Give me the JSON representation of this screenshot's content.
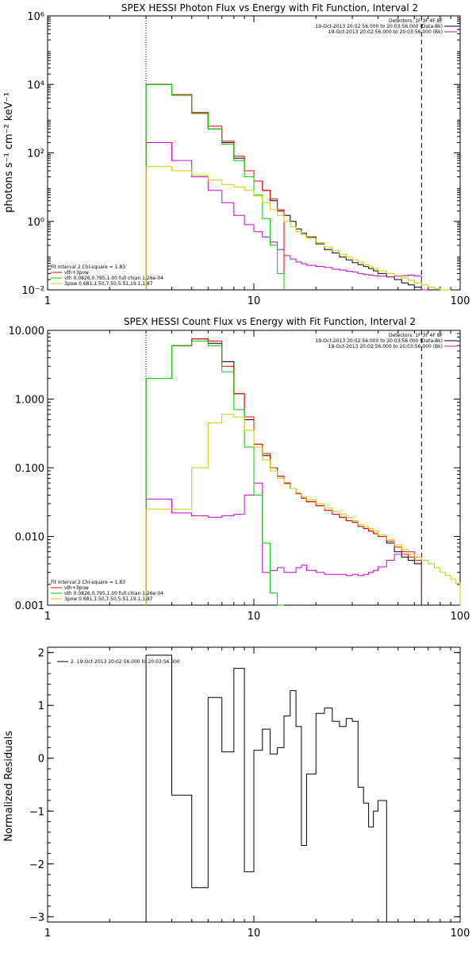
{
  "chart_data": [
    {
      "type": "step",
      "title": "SPEX HESSI Photon Flux vs Energy with Fit Function, Interval 2",
      "xlabel": "",
      "ylabel": "photons s⁻¹ cm⁻² keV⁻¹",
      "xscale": "log",
      "yscale": "log",
      "xlim": [
        1,
        100
      ],
      "ylim": [
        0.01,
        1000000
      ],
      "xticks": [
        "1",
        "10",
        "100"
      ],
      "yticks": [
        "10⁻²",
        "10⁰",
        "10²",
        "10⁴",
        "10⁶"
      ],
      "yticks_values": [
        0.01,
        1,
        100,
        10000,
        1000000
      ],
      "vlines": [
        {
          "x": 3.0,
          "style": "dotted"
        },
        {
          "x": 65,
          "style": "dashed"
        }
      ],
      "legend_top_right": [
        "Detectors: 1F 3F 4F 8F",
        "19-Oct-2013 20:02:56.000 to 20:03:56.000 (Data-Bk)",
        "19-Oct-2013 20:02:56.000 to 20:03:56.000 (Bk)"
      ],
      "legend_bottom_left": [
        "Fit Interval 2   Chi-square = 1.83",
        "vth+3pow",
        "vth 0.0826,0.795,1.00  full chian 1.26e-04",
        "3pow 0.681,1.50,7.50,5.51,19.1,1.87"
      ],
      "edges": [
        3,
        3.5,
        4,
        4.5,
        5,
        5.5,
        6,
        6.5,
        7,
        7.5,
        8,
        8.5,
        9,
        9.5,
        10,
        11,
        12,
        13,
        14,
        15,
        16,
        17,
        18,
        20,
        22,
        24,
        26,
        28,
        30,
        32,
        34,
        36,
        38,
        40,
        44,
        48,
        52,
        56,
        60,
        65,
        70,
        75,
        80,
        85,
        90
      ],
      "series": [
        {
          "name": "Data-Bk",
          "color": "#000000",
          "values": [
            10000,
            10000,
            5000,
            5000,
            1500,
            1500,
            500,
            500,
            200,
            200,
            70,
            70,
            30,
            30,
            15,
            8,
            4,
            2,
            1.5,
            1,
            0.6,
            0.45,
            0.35,
            0.22,
            0.15,
            0.12,
            0.09,
            0.075,
            0.062,
            0.055,
            0.048,
            0.042,
            0.036,
            0.03,
            0.024,
            0.02,
            0.016,
            0.014,
            0.012,
            0.01,
            0.01,
            0.01,
            0.01,
            0.01
          ]
        },
        {
          "name": "Bk",
          "color": "#cc00cc",
          "values": [
            200,
            200,
            60,
            60,
            20,
            20,
            8,
            8,
            3.5,
            3.5,
            1.5,
            1.5,
            0.8,
            0.8,
            0.5,
            0.35,
            0.25,
            0.15,
            0.1,
            0.08,
            0.065,
            0.058,
            0.052,
            0.048,
            0.045,
            0.04,
            0.038,
            0.035,
            0.033,
            0.03,
            0.028,
            0.027,
            0.026,
            0.025,
            0.024,
            0.025,
            0.026,
            0.027,
            0.025,
            0.0
          ]
        },
        {
          "name": "vth+3pow",
          "color": "#ff0000",
          "values": [
            10000,
            10000,
            5000,
            5000,
            1500,
            1500,
            600,
            600,
            220,
            220,
            80,
            80,
            30,
            30,
            15,
            8,
            4.5,
            2.2
          ]
        },
        {
          "name": "vth",
          "color": "#00cc00",
          "values": [
            10000,
            10000,
            4800,
            4800,
            1400,
            1400,
            500,
            500,
            180,
            180,
            60,
            60,
            20,
            20,
            6,
            1.2,
            0.2,
            0.03
          ]
        },
        {
          "name": "3pow",
          "color": "#cccc00",
          "values": [
            40,
            40,
            30,
            30,
            22,
            22,
            16,
            16,
            12,
            12,
            10,
            10,
            8,
            8,
            5.5,
            3.5,
            2.2,
            1.5,
            1,
            0.7,
            0.5,
            0.4,
            0.32,
            0.24,
            0.18,
            0.14,
            0.11,
            0.09,
            0.075,
            0.065,
            0.055,
            0.048,
            0.042,
            0.036,
            0.03,
            0.026,
            0.022,
            0.019,
            0.016,
            0.014,
            0.012,
            0.011,
            0.01,
            0.009
          ]
        }
      ]
    },
    {
      "type": "step",
      "title": "SPEX HESSI Count Flux vs Energy with Fit Function, Interval 2",
      "xlabel": "",
      "ylabel": "",
      "xscale": "log",
      "yscale": "log",
      "xlim": [
        1,
        100
      ],
      "ylim": [
        0.001,
        10
      ],
      "xticks": [
        "1",
        "10",
        "100"
      ],
      "yticks": [
        "0.001",
        "0.010",
        "0.100",
        "1.000",
        "10.000"
      ],
      "yticks_values": [
        0.001,
        0.01,
        0.1,
        1,
        10
      ],
      "vlines": [
        {
          "x": 3.0,
          "style": "dotted"
        },
        {
          "x": 65,
          "style": "dashed"
        }
      ],
      "legend_top_right": [
        "Detectors: 1F 3F 4F 8F",
        "19-Oct-2013 20:02:56.000 to 20:03:56.000 (Data-Bk)",
        "19-Oct-2013 20:02:56.000 to 20:03:56.000 (Bk)"
      ],
      "legend_bottom_left": [
        "Fit Interval 2   Chi-square = 1.83",
        "vth+3pow",
        "vth 0.0826,0.795,1.00  full chian 1.26e-04",
        "3pow 0.681,1.50,7.50,5.51,19.1,1.87"
      ],
      "edges": [
        3,
        4,
        5,
        6,
        7,
        8,
        9,
        10,
        11,
        12,
        13,
        14,
        15,
        16,
        17,
        18,
        20,
        22,
        24,
        26,
        28,
        30,
        32,
        34,
        36,
        38,
        40,
        44,
        48,
        52,
        56,
        60,
        65,
        70,
        75,
        80,
        85,
        90,
        95,
        100
      ],
      "series": [
        {
          "name": "Data-Bk",
          "color": "#000000",
          "values": [
            2.0,
            6.0,
            7.5,
            6.5,
            3.5,
            1.2,
            0.5,
            0.22,
            0.15,
            0.1,
            0.075,
            0.06,
            0.05,
            0.042,
            0.036,
            0.032,
            0.028,
            0.024,
            0.021,
            0.019,
            0.017,
            0.016,
            0.014,
            0.013,
            0.012,
            0.011,
            0.01,
            0.008,
            0.006,
            0.005,
            0.0045,
            0.004
          ]
        },
        {
          "name": "Bk",
          "color": "#cc00cc",
          "values": [
            0.035,
            0.022,
            0.02,
            0.019,
            0.02,
            0.021,
            0.04,
            0.06,
            0.003,
            0.0032,
            0.0035,
            0.003,
            0.003,
            0.0035,
            0.0038,
            0.0032,
            0.003,
            0.0028,
            0.0028,
            0.0028,
            0.0027,
            0.0028,
            0.0027,
            0.0028,
            0.003,
            0.0032,
            0.0036,
            0.0045,
            0.0055,
            0.0055,
            0.006,
            0.005
          ]
        },
        {
          "name": "vth+3pow",
          "color": "#ff0000",
          "values": [
            2.0,
            6.0,
            7.5,
            7.0,
            3.0,
            1.2,
            0.55,
            0.22,
            0.16,
            0.1,
            0.075,
            0.06,
            0.05,
            0.042,
            0.036,
            0.032,
            0.028,
            0.024,
            0.021,
            0.019,
            0.017,
            0.016,
            0.014,
            0.013,
            0.012,
            0.011,
            0.01,
            0.0085,
            0.007,
            0.006,
            0.005,
            0.0045
          ]
        },
        {
          "name": "vth",
          "color": "#00cc00",
          "values": [
            2.0,
            6.0,
            7.0,
            6.0,
            2.5,
            0.7,
            0.2,
            0.04,
            0.008,
            0.0015,
            0.0008
          ]
        },
        {
          "name": "3pow",
          "color": "#cccc00",
          "values": [
            0.025,
            0.025,
            0.1,
            0.45,
            0.6,
            0.55,
            0.35,
            0.2,
            0.13,
            0.09,
            0.07,
            0.058,
            0.05,
            0.043,
            0.038,
            0.034,
            0.03,
            0.026,
            0.023,
            0.021,
            0.019,
            0.017,
            0.015,
            0.014,
            0.013,
            0.012,
            0.0105,
            0.009,
            0.0075,
            0.0065,
            0.0055,
            0.005,
            0.0045,
            0.004,
            0.0035,
            0.003,
            0.0027,
            0.0024,
            0.0021
          ]
        }
      ]
    },
    {
      "type": "step",
      "title": "",
      "xlabel": "",
      "ylabel": "Normalized Residuals",
      "xscale": "log",
      "yscale": "linear",
      "xlim": [
        1,
        100
      ],
      "ylim": [
        -3.1,
        2.1
      ],
      "xticks": [
        "1",
        "10",
        "100"
      ],
      "yticks": [
        "2",
        "1",
        "0",
        "−1",
        "−2",
        "−3"
      ],
      "yticks_values": [
        2,
        1,
        0,
        -1,
        -2,
        -3
      ],
      "legend_top_left": [
        "2. 19-Oct-2013 20:02:56.000 to 20:03:56.000"
      ],
      "edges": [
        3,
        4,
        5,
        6,
        7,
        8,
        9,
        10,
        11,
        12,
        13,
        14,
        15,
        16,
        17,
        18,
        20,
        22,
        24,
        26,
        28,
        30,
        32,
        34,
        36,
        38,
        40,
        44,
        48,
        52,
        56,
        60,
        65
      ],
      "series": [
        {
          "name": "2. 19-Oct-2013",
          "color": "#000000",
          "values": [
            1.95,
            -0.7,
            -2.45,
            1.15,
            0.12,
            1.7,
            -2.15,
            0.15,
            0.55,
            0.08,
            0.2,
            0.8,
            1.28,
            0.6,
            -1.65,
            -0.3,
            0.85,
            0.95,
            0.7,
            0.6,
            0.75,
            0.7,
            -0.55,
            -0.85,
            -1.3,
            -1.0,
            -0.8
          ]
        }
      ]
    }
  ]
}
